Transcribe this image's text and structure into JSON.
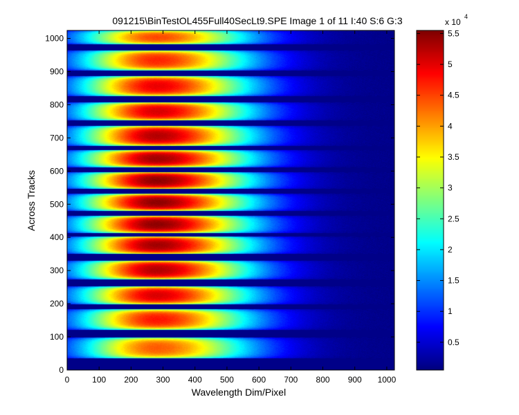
{
  "chart_data": {
    "type": "heatmap",
    "title": "091215\\BinTestOL455Full40SecLt9.SPE  Image 1 of 11  I:40  S:6  G:3",
    "xlabel": "Wavelength Dim/Pixel",
    "ylabel": "Across Tracks",
    "xlim": [
      0,
      1024
    ],
    "ylim": [
      0,
      1024
    ],
    "x_ticks": [
      0,
      100,
      200,
      300,
      400,
      500,
      600,
      700,
      800,
      900,
      1000
    ],
    "y_ticks": [
      0,
      100,
      200,
      300,
      400,
      500,
      600,
      700,
      800,
      900,
      1000
    ],
    "colormap": "jet",
    "clim": [
      500,
      55500
    ],
    "colorbar": {
      "ticks": [
        0.5,
        1,
        1.5,
        2,
        2.5,
        3,
        3.5,
        4,
        4.5,
        5,
        5.5
      ],
      "tick_labels": [
        "0.5",
        "1",
        "1.5",
        "2",
        "2.5",
        "3",
        "3.5",
        "4",
        "4.5",
        "5",
        "5.5"
      ],
      "multiplier": "x 10",
      "exponent": "4"
    },
    "tracks": [
      {
        "y_start": 35,
        "y_end": 98,
        "peak": 44000
      },
      {
        "y_start": 122,
        "y_end": 183,
        "peak": 48000
      },
      {
        "y_start": 198,
        "y_end": 252,
        "peak": 51000
      },
      {
        "y_start": 274,
        "y_end": 330,
        "peak": 53000
      },
      {
        "y_start": 350,
        "y_end": 403,
        "peak": 54000
      },
      {
        "y_start": 413,
        "y_end": 465,
        "peak": 55000
      },
      {
        "y_start": 480,
        "y_end": 531,
        "peak": 55000
      },
      {
        "y_start": 546,
        "y_end": 597,
        "peak": 55000
      },
      {
        "y_start": 612,
        "y_end": 663,
        "peak": 54000
      },
      {
        "y_start": 676,
        "y_end": 736,
        "peak": 53000
      },
      {
        "y_start": 752,
        "y_end": 807,
        "peak": 51000
      },
      {
        "y_start": 826,
        "y_end": 886,
        "peak": 50000
      },
      {
        "y_start": 904,
        "y_end": 964,
        "peak": 47000
      },
      {
        "y_start": 982,
        "y_end": 1024,
        "peak": 45000
      }
    ],
    "spectrum_peak_pixel": 280,
    "background_level": 1000
  }
}
